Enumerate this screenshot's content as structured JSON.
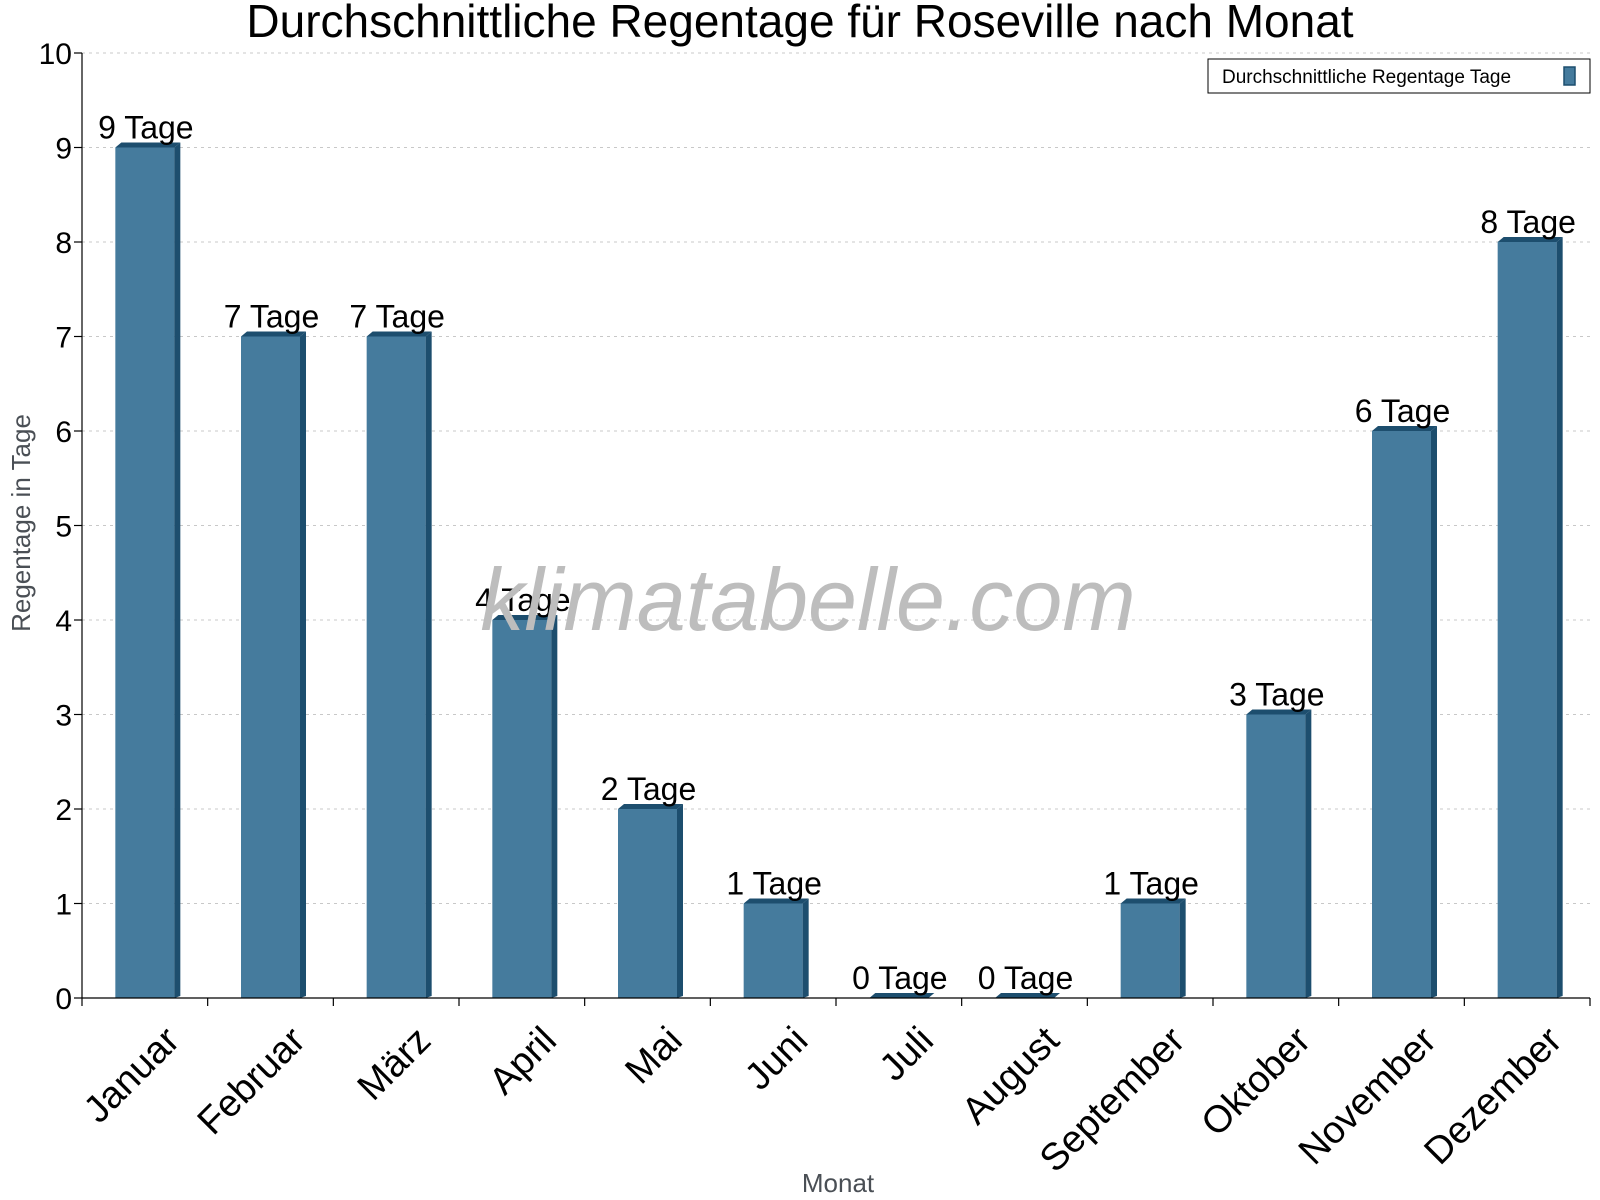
{
  "chart_data": {
    "type": "bar",
    "title": "Durchschnittliche Regentage für Roseville nach Monat",
    "xlabel": "Monat",
    "ylabel": "Regentage in Tage",
    "ylim": [
      0,
      10
    ],
    "yticks": [
      0,
      1,
      2,
      3,
      4,
      5,
      6,
      7,
      8,
      9,
      10
    ],
    "grid": true,
    "legend_position": "top-right",
    "categories": [
      "Januar",
      "Februar",
      "März",
      "April",
      "Mai",
      "Juni",
      "Juli",
      "August",
      "September",
      "Oktober",
      "November",
      "Dezember"
    ],
    "series": [
      {
        "name": "Durchschnittliche Regentage Tage",
        "values": [
          9,
          7,
          7,
          4,
          2,
          1,
          0,
          0,
          1,
          3,
          6,
          8
        ],
        "labels": [
          "9 Tage",
          "7 Tage",
          "7 Tage",
          "4 Tage",
          "2 Tage",
          "1 Tage",
          "0 Tage",
          "0 Tage",
          "1 Tage",
          "3 Tage",
          "6 Tage",
          "8 Tage"
        ]
      }
    ],
    "colors": {
      "bar": "#457b9d",
      "bar_side": "#1d4e6e",
      "bar_top": "#1d4e6e"
    }
  },
  "watermark": "klimatabelle.com"
}
